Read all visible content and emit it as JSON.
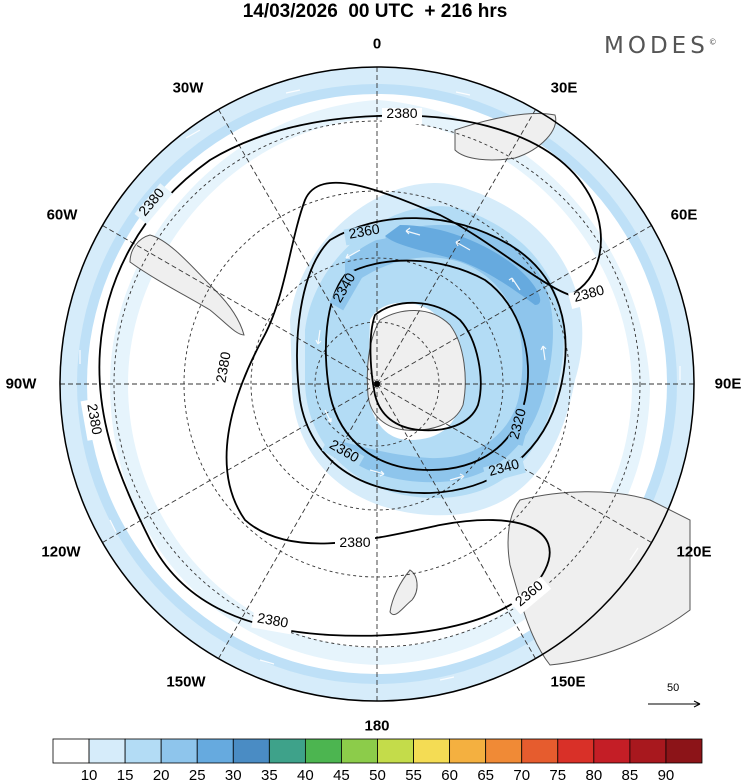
{
  "header": {
    "title": "14/03/2026  00 UTC  + 216 hrs",
    "brand": "MODES",
    "brand_mark": "©"
  },
  "map": {
    "projection": "south-polar-stereographic",
    "longitude_labels": [
      "0",
      "30E",
      "60E",
      "90E",
      "120E",
      "150E",
      "180",
      "150W",
      "120W",
      "90W",
      "60W",
      "30W"
    ],
    "contour_labels": [
      "2380",
      "2380",
      "2380",
      "2380",
      "2380",
      "2380",
      "2380",
      "2360",
      "2360",
      "2360",
      "2340",
      "2340",
      "2320"
    ],
    "shading_colors": {
      "light": "#d6ecfa",
      "mid": "#b3dcf5",
      "strong": "#8ec5ec",
      "jet": "#66aadf",
      "land": "#efefef"
    }
  },
  "reference_vector": {
    "value": "50"
  },
  "colorbar": {
    "labels": [
      "10",
      "15",
      "20",
      "25",
      "30",
      "35",
      "40",
      "45",
      "50",
      "55",
      "60",
      "65",
      "70",
      "75",
      "80",
      "85",
      "90"
    ],
    "colors": [
      "#ffffff",
      "#d6ecfa",
      "#b3dcf5",
      "#8ec5ec",
      "#66aadf",
      "#4a8cc4",
      "#3ea28a",
      "#4cb550",
      "#8ccc4a",
      "#c4dc4a",
      "#f4dc54",
      "#f4b040",
      "#f08a36",
      "#e65c2e",
      "#d93028",
      "#c41e26",
      "#a8181e",
      "#8c1418"
    ]
  }
}
